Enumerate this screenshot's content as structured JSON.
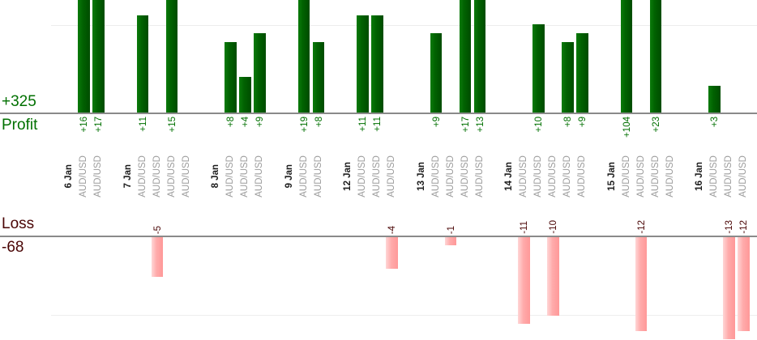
{
  "chart_data": {
    "type": "bar",
    "description": "Per-trade profit/loss bar chart grouped by day; green bars are winning trades above the profit baseline, pink bars are losing trades below the loss baseline; zero-value trades show a label only",
    "instrument": "AUD/USD",
    "gridline_interval": 10,
    "legend_position": "none",
    "profit_section": {
      "label": "Profit",
      "total": "+325",
      "text_color": "#007000",
      "bar_color_left": "#0b7b0b",
      "bar_color_right": "#004c00"
    },
    "loss_section": {
      "label": "Loss",
      "total": "-68",
      "text_color": "#4a0505",
      "bar_color_left": "#ffd6d6",
      "bar_color_right": "#ff9898"
    },
    "days": [
      {
        "date": "6 Jan",
        "trades": [
          {
            "value": 16,
            "label": "+16",
            "instrument": "AUD/USD"
          },
          {
            "value": 17,
            "label": "+17",
            "instrument": "AUD/USD"
          }
        ]
      },
      {
        "date": "7 Jan",
        "trades": [
          {
            "value": 11,
            "label": "+11",
            "instrument": "AUD/USD"
          },
          {
            "value": -5,
            "label": "-5",
            "instrument": "AUD/USD"
          },
          {
            "value": 15,
            "label": "+15",
            "instrument": "AUD/USD"
          },
          {
            "value": 0,
            "label": "",
            "instrument": "AUD/USD"
          }
        ]
      },
      {
        "date": "8 Jan",
        "trades": [
          {
            "value": 8,
            "label": "+8",
            "instrument": "AUD/USD"
          },
          {
            "value": 4,
            "label": "+4",
            "instrument": "AUD/USD"
          },
          {
            "value": 9,
            "label": "+9",
            "instrument": "AUD/USD"
          }
        ]
      },
      {
        "date": "9 Jan",
        "trades": [
          {
            "value": 19,
            "label": "+19",
            "instrument": "AUD/USD"
          },
          {
            "value": 8,
            "label": "+8",
            "instrument": "AUD/USD"
          }
        ]
      },
      {
        "date": "12 Jan",
        "trades": [
          {
            "value": 11,
            "label": "+11",
            "instrument": "AUD/USD"
          },
          {
            "value": 11,
            "label": "+11",
            "instrument": "AUD/USD"
          },
          {
            "value": -4,
            "label": "-4",
            "instrument": "AUD/USD"
          }
        ]
      },
      {
        "date": "13 Jan",
        "trades": [
          {
            "value": 9,
            "label": "+9",
            "instrument": "AUD/USD"
          },
          {
            "value": -1,
            "label": "-1",
            "instrument": "AUD/USD"
          },
          {
            "value": 17,
            "label": "+17",
            "instrument": "AUD/USD"
          },
          {
            "value": 13,
            "label": "+13",
            "instrument": "AUD/USD"
          }
        ]
      },
      {
        "date": "14 Jan",
        "trades": [
          {
            "value": -11,
            "label": "-11",
            "instrument": "AUD/USD"
          },
          {
            "value": 10,
            "label": "+10",
            "instrument": "AUD/USD"
          },
          {
            "value": -10,
            "label": "-10",
            "instrument": "AUD/USD"
          },
          {
            "value": 8,
            "label": "+8",
            "instrument": "AUD/USD"
          },
          {
            "value": 9,
            "label": "+9",
            "instrument": "AUD/USD"
          }
        ]
      },
      {
        "date": "15 Jan",
        "trades": [
          {
            "value": 104,
            "label": "+104",
            "instrument": "AUD/USD"
          },
          {
            "value": -12,
            "label": "-12",
            "instrument": "AUD/USD"
          },
          {
            "value": 23,
            "label": "+23",
            "instrument": "AUD/USD"
          },
          {
            "value": 0,
            "label": "",
            "instrument": "AUD/USD"
          }
        ]
      },
      {
        "date": "16 Jan",
        "trades": [
          {
            "value": 3,
            "label": "+3",
            "instrument": "AUD/USD"
          },
          {
            "value": -13,
            "label": "-13",
            "instrument": "AUD/USD"
          },
          {
            "value": -12,
            "label": "-12",
            "instrument": "AUD/USD"
          }
        ]
      }
    ]
  }
}
